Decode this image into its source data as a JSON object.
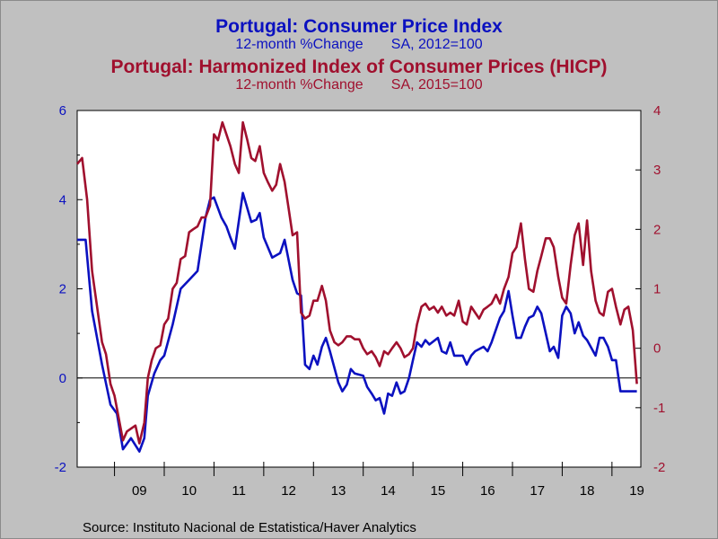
{
  "title": "Portugal: Consumer Price Index",
  "subtitle": "12-month %Change       SA, 2012=100",
  "title2": "Portugal: Harmonized Index of Consumer Prices (HICP)",
  "subtitle2": "12-month %Change       SA, 2015=100",
  "source": "Source:  Instituto Nacional de Estatistica/Haver Analytics",
  "colors": {
    "cpi": "#0b11c0",
    "hicp": "#a0102e",
    "background": "#c0c0c0",
    "plot": "#ffffff"
  },
  "chart_data": {
    "type": "line",
    "x_tick_labels": [
      "09",
      "10",
      "11",
      "12",
      "13",
      "14",
      "15",
      "16",
      "17",
      "18",
      "19"
    ],
    "x_range": [
      2008.25,
      2019.58
    ],
    "left_axis": {
      "ticks": [
        "6",
        "4",
        "2",
        "0",
        "-2"
      ],
      "ylim": [
        -2,
        6
      ]
    },
    "right_axis": {
      "ticks": [
        "4",
        "3",
        "2",
        "1",
        "0",
        "-1",
        "-2"
      ],
      "ylim": [
        -2,
        4
      ]
    },
    "zero_line": 0,
    "series": [
      {
        "axis": "left",
        "x": [
          2008.25,
          2008.42,
          2008.55,
          2008.75,
          2008.92,
          2009.05,
          2009.17,
          2009.33,
          2009.5,
          2009.6,
          2009.67,
          2009.8,
          2009.92,
          2010.0,
          2010.17,
          2010.33,
          2010.5,
          2010.67,
          2010.83,
          2010.92,
          2011.0,
          2011.15,
          2011.25,
          2011.33,
          2011.42,
          2011.58,
          2011.75,
          2011.85,
          2011.92,
          2012.0,
          2012.17,
          2012.33,
          2012.42,
          2012.58,
          2012.67,
          2012.75,
          2012.83,
          2012.92,
          2013.0,
          2013.08,
          2013.17,
          2013.25,
          2013.33,
          2013.5,
          2013.58,
          2013.67,
          2013.75,
          2013.83,
          2014.0,
          2014.08,
          2014.17,
          2014.25,
          2014.33,
          2014.42,
          2014.5,
          2014.58,
          2014.67,
          2014.75,
          2014.83,
          2014.92,
          2015.0,
          2015.08,
          2015.17,
          2015.25,
          2015.33,
          2015.5,
          2015.58,
          2015.67,
          2015.75,
          2015.83,
          2016.0,
          2016.08,
          2016.17,
          2016.25,
          2016.42,
          2016.5,
          2016.58,
          2016.75,
          2016.83,
          2016.92,
          2017.0,
          2017.08,
          2017.17,
          2017.25,
          2017.33,
          2017.42,
          2017.5,
          2017.58,
          2017.75,
          2017.83,
          2017.92,
          2018.0,
          2018.08,
          2018.17,
          2018.25,
          2018.33,
          2018.42,
          2018.5,
          2018.67,
          2018.75,
          2018.83,
          2018.92,
          2019.0,
          2019.08,
          2019.17,
          2019.25,
          2019.33,
          2019.42,
          2019.5
        ],
        "values": [
          3.1,
          3.1,
          1.5,
          0.3,
          -0.6,
          -0.8,
          -1.6,
          -1.35,
          -1.65,
          -1.35,
          -0.4,
          0.1,
          0.4,
          0.5,
          1.2,
          2.0,
          2.2,
          2.4,
          3.6,
          4.0,
          4.05,
          3.6,
          3.4,
          3.15,
          2.9,
          4.15,
          3.5,
          3.55,
          3.7,
          3.15,
          2.7,
          2.8,
          3.1,
          2.2,
          1.9,
          1.85,
          0.3,
          0.2,
          0.5,
          0.3,
          0.7,
          0.9,
          0.6,
          -0.1,
          -0.3,
          -0.15,
          0.2,
          0.1,
          0.05,
          -0.2,
          -0.35,
          -0.5,
          -0.45,
          -0.8,
          -0.35,
          -0.4,
          -0.1,
          -0.35,
          -0.3,
          0.0,
          0.4,
          0.8,
          0.7,
          0.85,
          0.75,
          0.9,
          0.6,
          0.55,
          0.8,
          0.5,
          0.5,
          0.3,
          0.5,
          0.6,
          0.7,
          0.6,
          0.8,
          1.35,
          1.5,
          1.95,
          1.4,
          0.9,
          0.9,
          1.15,
          1.35,
          1.4,
          1.6,
          1.45,
          0.6,
          0.7,
          0.45,
          1.4,
          1.6,
          1.45,
          1.0,
          1.25,
          0.95,
          0.85,
          0.5,
          0.9,
          0.9,
          0.7,
          0.4,
          0.4,
          -0.3,
          -0.3,
          -0.3,
          -0.3,
          -0.3
        ],
        "color": "#0b11c0"
      },
      {
        "axis": "right",
        "x": [
          2008.25,
          2008.35,
          2008.45,
          2008.55,
          2008.75,
          2008.83,
          2008.92,
          2009.0,
          2009.17,
          2009.25,
          2009.42,
          2009.5,
          2009.6,
          2009.67,
          2009.75,
          2009.83,
          2009.92,
          2010.0,
          2010.08,
          2010.17,
          2010.25,
          2010.33,
          2010.42,
          2010.5,
          2010.58,
          2010.67,
          2010.75,
          2010.83,
          2010.92,
          2011.0,
          2011.08,
          2011.17,
          2011.33,
          2011.42,
          2011.5,
          2011.58,
          2011.67,
          2011.75,
          2011.83,
          2011.92,
          2012.0,
          2012.08,
          2012.17,
          2012.25,
          2012.33,
          2012.42,
          2012.5,
          2012.58,
          2012.67,
          2012.75,
          2012.83,
          2012.92,
          2013.0,
          2013.08,
          2013.17,
          2013.25,
          2013.33,
          2013.42,
          2013.5,
          2013.58,
          2013.67,
          2013.75,
          2013.83,
          2013.92,
          2014.0,
          2014.08,
          2014.17,
          2014.25,
          2014.33,
          2014.42,
          2014.5,
          2014.58,
          2014.67,
          2014.75,
          2014.83,
          2014.92,
          2015.0,
          2015.08,
          2015.17,
          2015.25,
          2015.33,
          2015.42,
          2015.5,
          2015.58,
          2015.67,
          2015.75,
          2015.83,
          2015.92,
          2016.0,
          2016.08,
          2016.17,
          2016.25,
          2016.33,
          2016.42,
          2016.5,
          2016.58,
          2016.67,
          2016.75,
          2016.83,
          2016.92,
          2017.0,
          2017.08,
          2017.17,
          2017.25,
          2017.33,
          2017.42,
          2017.5,
          2017.58,
          2017.67,
          2017.75,
          2017.83,
          2017.92,
          2018.0,
          2018.08,
          2018.17,
          2018.25,
          2018.33,
          2018.42,
          2018.5,
          2018.58,
          2018.67,
          2018.75,
          2018.83,
          2018.92,
          2019.0,
          2019.08,
          2019.17,
          2019.25,
          2019.33,
          2019.42,
          2019.5
        ],
        "values": [
          3.1,
          3.2,
          2.5,
          1.3,
          0.1,
          -0.1,
          -0.6,
          -0.8,
          -1.55,
          -1.4,
          -1.3,
          -1.6,
          -1.25,
          -0.5,
          -0.2,
          0.0,
          0.05,
          0.4,
          0.5,
          1.0,
          1.1,
          1.5,
          1.55,
          1.95,
          2.0,
          2.05,
          2.2,
          2.2,
          2.4,
          3.6,
          3.5,
          3.8,
          3.4,
          3.1,
          2.95,
          3.8,
          3.5,
          3.2,
          3.15,
          3.4,
          2.95,
          2.8,
          2.65,
          2.75,
          3.1,
          2.8,
          2.35,
          1.9,
          1.95,
          0.6,
          0.5,
          0.55,
          0.8,
          0.8,
          1.05,
          0.8,
          0.3,
          0.1,
          0.05,
          0.1,
          0.2,
          0.2,
          0.15,
          0.15,
          0.0,
          -0.1,
          -0.05,
          -0.15,
          -0.3,
          -0.05,
          -0.1,
          0.0,
          0.1,
          0.0,
          -0.15,
          -0.1,
          0.0,
          0.4,
          0.7,
          0.75,
          0.65,
          0.7,
          0.6,
          0.7,
          0.55,
          0.6,
          0.55,
          0.8,
          0.45,
          0.4,
          0.7,
          0.6,
          0.5,
          0.65,
          0.7,
          0.75,
          0.9,
          0.75,
          1.0,
          1.2,
          1.6,
          1.7,
          2.1,
          1.5,
          1.0,
          0.95,
          1.3,
          1.55,
          1.85,
          1.85,
          1.7,
          1.2,
          0.85,
          0.75,
          1.4,
          1.9,
          2.1,
          1.4,
          2.15,
          1.3,
          0.8,
          0.6,
          0.55,
          0.95,
          1.0,
          0.7,
          0.4,
          0.65,
          0.7,
          0.3,
          -0.6
        ],
        "color": "#a0102e"
      }
    ]
  }
}
